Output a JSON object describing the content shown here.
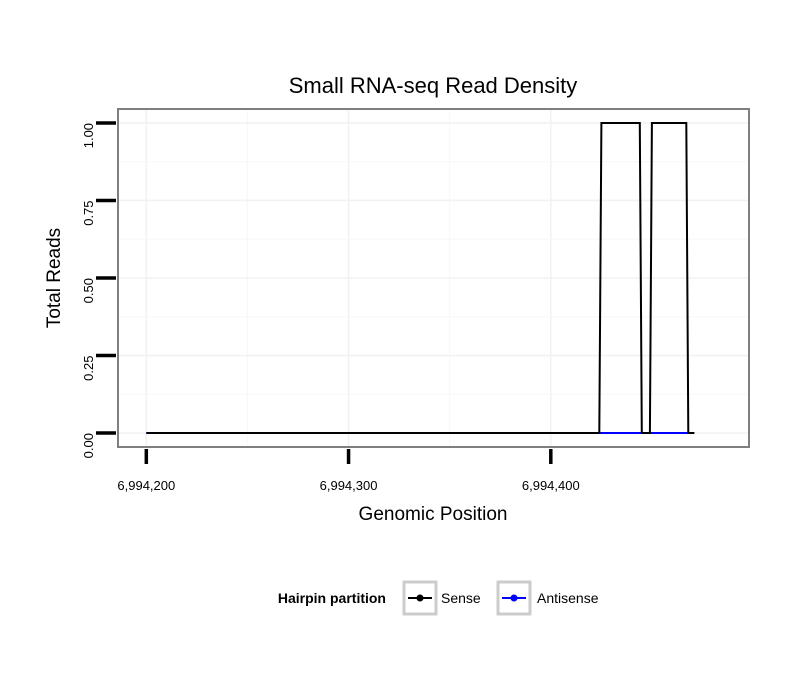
{
  "chart_data": {
    "type": "line",
    "title": "Small RNA-seq Read Density",
    "xlabel": "Genomic Position",
    "ylabel": "Total Reads",
    "xlim": [
      6994186,
      6994498
    ],
    "ylim": [
      -0.045,
      1.045
    ],
    "x_ticks": [
      6994200,
      6994300,
      6994400
    ],
    "x_tick_labels": [
      "6,994,200",
      "6,994,300",
      "6,994,400"
    ],
    "y_ticks": [
      0,
      0.25,
      0.5,
      0.75,
      1.0
    ],
    "y_tick_labels": [
      "0.00",
      "0.25",
      "0.50",
      "0.75",
      "1.00"
    ],
    "grid": true,
    "legend": {
      "title": "Hairpin partition",
      "position": "bottom",
      "entries": [
        {
          "name": "Sense",
          "color": "#000000"
        },
        {
          "name": "Antisense",
          "color": "#0000ff"
        }
      ]
    },
    "series": [
      {
        "name": "Antisense",
        "color": "#0000ff",
        "x": [
          6994200,
          6994468
        ],
        "y": [
          0,
          0
        ]
      },
      {
        "name": "Sense",
        "color": "#000000",
        "x": [
          6994200,
          6994424,
          6994425,
          6994444,
          6994445,
          6994449,
          6994450,
          6994467,
          6994468,
          6994471
        ],
        "y": [
          0,
          0,
          1,
          1,
          0,
          0,
          1,
          1,
          0,
          0
        ]
      }
    ]
  }
}
